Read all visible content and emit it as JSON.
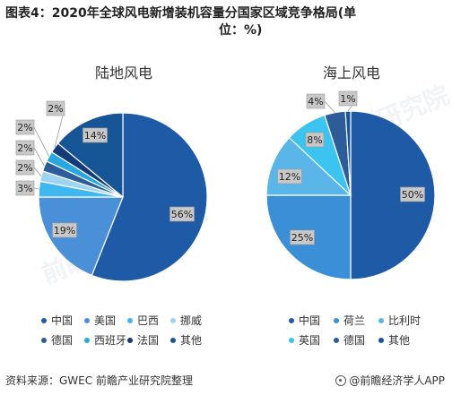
{
  "header": {
    "title_line1": "图表4：2020年全球风电新增装机容量分国家区域竞争格局(单",
    "title_line2": "位：%)"
  },
  "watermarks": [
    "前瞻产业研究院",
    "前瞻产业研究院"
  ],
  "colors": {
    "中国": "#1f5aa6",
    "美国": "#4a90d9",
    "巴西": "#3fb7f0",
    "挪威": "#9fd3f2",
    "德国": "#2c5c9a",
    "西班牙": "#29a8e0",
    "法国": "#153a78",
    "其他": "#165596",
    "荷兰": "#3b8fd6",
    "比利时": "#5ab6e8",
    "英国": "#3bc4f0"
  },
  "chart_data": [
    {
      "type": "pie",
      "title": "陆地风电",
      "categories": [
        "中国",
        "美国",
        "巴西",
        "挪威",
        "德国",
        "西班牙",
        "法国",
        "其他"
      ],
      "values": [
        56,
        19,
        3,
        2,
        2,
        2,
        2,
        14
      ],
      "labels": [
        "56%",
        "19%",
        "3%",
        "2%",
        "2%",
        "2%",
        "2%",
        "14%"
      ],
      "legend_position": "bottom"
    },
    {
      "type": "pie",
      "title": "海上风电",
      "categories": [
        "中国",
        "荷兰",
        "比利时",
        "英国",
        "德国",
        "其他"
      ],
      "values": [
        50,
        25,
        12,
        8,
        4,
        1
      ],
      "labels": [
        "50%",
        "25%",
        "12%",
        "8%",
        "4%",
        "1%"
      ],
      "legend_position": "bottom"
    }
  ],
  "legends": {
    "left": [
      "中国",
      "美国",
      "巴西",
      "挪威",
      "德国",
      "西班牙",
      "法国",
      "其他"
    ],
    "right": [
      "中国",
      "荷兰",
      "比利时",
      "英国",
      "德国",
      "其他"
    ]
  },
  "footer": {
    "source": "资料来源：GWEC 前瞻产业研究院整理",
    "brand": "@前瞻经济学人APP"
  }
}
